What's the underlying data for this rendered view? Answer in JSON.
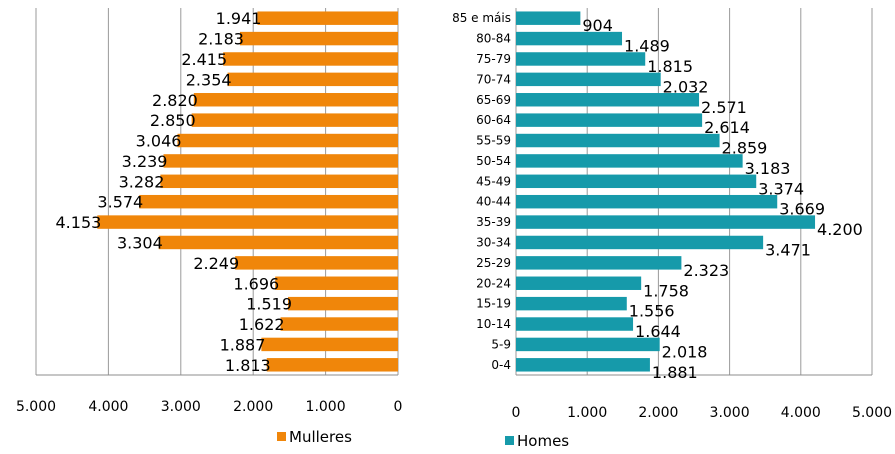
{
  "chart_data": [
    {
      "type": "bar",
      "orientation": "horizontal",
      "direction": "reversed",
      "color": "#F0860A",
      "categories": [
        "85 e máis",
        "80-84",
        "75-79",
        "70-74",
        "65-69",
        "60-64",
        "55-59",
        "50-54",
        "45-49",
        "40-44",
        "35-39",
        "30-34",
        "25-29",
        "20-24",
        "15-19",
        "10-14",
        "5-9",
        "0-4"
      ],
      "values": [
        1941,
        2183,
        2415,
        2354,
        2820,
        2850,
        3046,
        3239,
        3282,
        3574,
        4153,
        3304,
        2249,
        1696,
        1519,
        1622,
        1887,
        1813
      ],
      "data_labels": [
        "1.941",
        "2.183",
        "2.415",
        "2.354",
        "2.820",
        "2.850",
        "3.046",
        "3.239",
        "3.282",
        "3.574",
        "4.153",
        "3.304",
        "2.249",
        "1.696",
        "1.519",
        "1.622",
        "1.887",
        "1.813"
      ],
      "xlim": [
        0,
        5000
      ],
      "x_ticks": [
        5000,
        4000,
        3000,
        2000,
        1000,
        0
      ],
      "x_tick_labels": [
        "5.000",
        "4.000",
        "3.000",
        "2.000",
        "1.000",
        "0"
      ],
      "legend": "Mulleres",
      "legend_position": "bottom",
      "grid": true
    },
    {
      "type": "bar",
      "orientation": "horizontal",
      "color": "#169AAA",
      "categories": [
        "85 e máis",
        "80-84",
        "75-79",
        "70-74",
        "65-69",
        "60-64",
        "55-59",
        "50-54",
        "45-49",
        "40-44",
        "35-39",
        "30-34",
        "25-29",
        "20-24",
        "15-19",
        "10-14",
        "5-9",
        "0-4"
      ],
      "values": [
        904,
        1489,
        1815,
        2032,
        2571,
        2614,
        2859,
        3183,
        3374,
        3669,
        4200,
        3471,
        2323,
        1758,
        1556,
        1644,
        2018,
        1881
      ],
      "data_labels": [
        "904",
        "1.489",
        "1.815",
        "2.032",
        "2.571",
        "2.614",
        "2.859",
        "3.183",
        "3.374",
        "3.669",
        "4.200",
        "3.471",
        "2.323",
        "1.758",
        "1.556",
        "1.644",
        "2.018",
        "1.881"
      ],
      "xlim": [
        0,
        5000
      ],
      "x_ticks": [
        0,
        1000,
        2000,
        3000,
        4000,
        5000
      ],
      "x_tick_labels": [
        "0",
        "1.000",
        "2.000",
        "3.000",
        "4.000",
        "5.000"
      ],
      "legend": "Homes",
      "legend_position": "bottom",
      "grid": true
    }
  ]
}
